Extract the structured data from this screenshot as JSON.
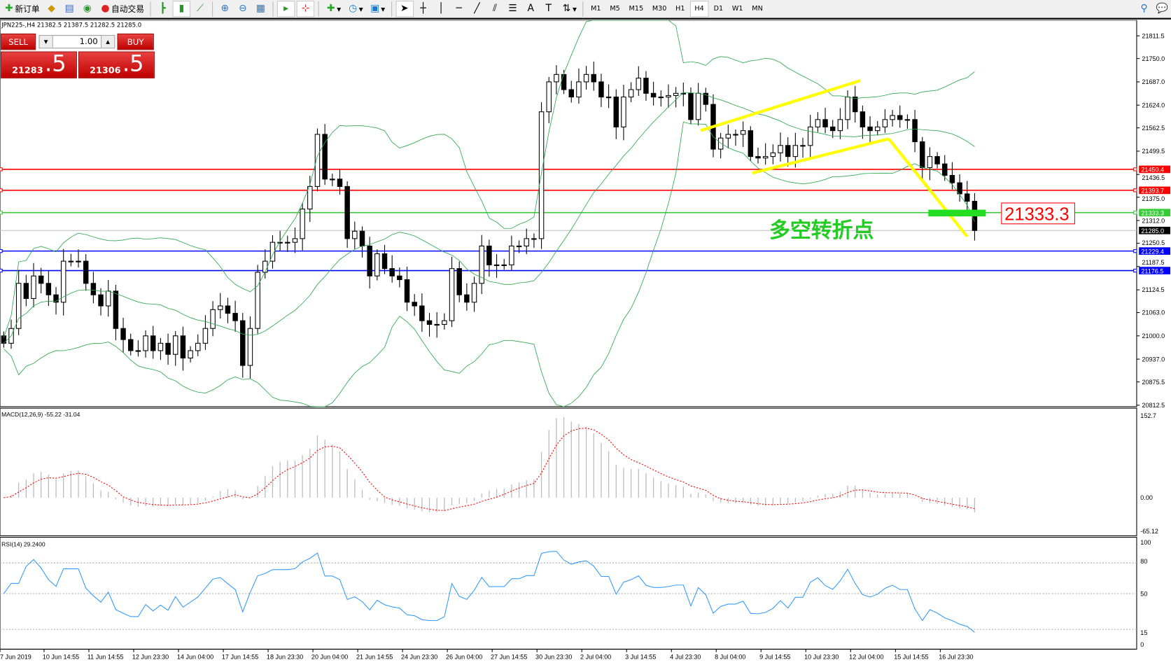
{
  "toolbar": {
    "new_order": "新订单",
    "auto_trading": "自动交易",
    "timeframes": [
      "M1",
      "M5",
      "M15",
      "M30",
      "H1",
      "H4",
      "D1",
      "W1",
      "MN"
    ],
    "active_timeframe": "H4"
  },
  "chart_info": "JPN225-,H4  21382.5 21387.5 21282.5 21285.0",
  "trade_panel": {
    "sell_label": "SELL",
    "buy_label": "BUY",
    "lot": "1.00",
    "bid_main": "21283",
    "bid_last": ".5",
    "ask_main": "21306",
    "ask_last": ".5"
  },
  "annotation": {
    "text": "多空转折点",
    "price_label": "21333.3"
  },
  "colors": {
    "bull_bear": "#000000",
    "bands": "#2fa84f",
    "resistance": "#ff0000",
    "pivot": "#33cc33",
    "support": "#0000ff",
    "trend": "#ffff00",
    "macd_signal": "#ff0000",
    "rsi": "#1e90ff"
  },
  "price_axis": {
    "ticks": [
      "21811.5",
      "21750.0",
      "21687.0",
      "21624.0",
      "21562.5",
      "21499.5",
      "21436.5",
      "21375.0",
      "21312.0",
      "21250.5",
      "21187.5",
      "21124.5",
      "21063.0",
      "21000.0",
      "20937.0",
      "20875.5",
      "20812.5"
    ],
    "range": [
      20812.5,
      21811.5
    ]
  },
  "levels": [
    {
      "price": "21450.4",
      "color": "#ff0000"
    },
    {
      "price": "21393.7",
      "color": "#ff0000"
    },
    {
      "price": "21333.3",
      "color": "#33cc33"
    },
    {
      "price": "21285.0",
      "color": "#000000"
    },
    {
      "price": "21229.4",
      "color": "#0000ff"
    },
    {
      "price": "21176.5",
      "color": "#0000ff"
    }
  ],
  "macd": {
    "label": "MACD(12,26,9) -55.22 -31.04",
    "ticks": [
      "152.7",
      "0.00",
      "-65.12"
    ]
  },
  "rsi": {
    "label": "RSI(14) 29.2400",
    "ticks": [
      "100",
      "80",
      "50",
      "15",
      "0"
    ]
  },
  "time_axis": [
    "7 Jun 2019",
    "10 Jun 14:55",
    "11 Jun 14:55",
    "12 Jun 23:30",
    "14 Jun 04:00",
    "17 Jun 14:55",
    "18 Jun 23:30",
    "20 Jun 04:00",
    "21 Jun 14:55",
    "24 Jun 23:30",
    "26 Jun 04:00",
    "27 Jun 14:55",
    "30 Jun 23:30",
    "2 Jul 04:00",
    "3 Jul 14:55",
    "4 Jul 23:30",
    "8 Jul 04:00",
    "9 Jul 14:55",
    "10 Jul 23:30",
    "12 Jul 04:00",
    "15 Jul 14:55",
    "16 Jul 23:30"
  ],
  "chart_data": {
    "type": "candlestick",
    "symbol": "JPN225-",
    "timeframe": "H4",
    "closes_approx": [
      20980,
      21020,
      21142,
      21101,
      21162,
      21142,
      21111,
      21091,
      21202,
      21202,
      21202,
      21142,
      21111,
      21081,
      21121,
      21020,
      20990,
      20960,
      20960,
      21000,
      20960,
      20980,
      20950,
      21000,
      20940,
      20960,
      20980,
      21020,
      21071,
      21081,
      21061,
      21041,
      20920,
      21020,
      21172,
      21202,
      21253,
      21253,
      21253,
      21263,
      21343,
      21404,
      21545,
      21424,
      21424,
      21404,
      21263,
      21283,
      21243,
      21162,
      21222,
      21182,
      21162,
      21152,
      21091,
      21081,
      21041,
      21031,
      21031,
      21041,
      21182,
      21111,
      21091,
      21142,
      21243,
      21192,
      21192,
      21192,
      21243,
      21243,
      21263,
      21263,
      21606,
      21687,
      21707,
      21666,
      21646,
      21687,
      21707,
      21687,
      21646,
      21646,
      21565,
      21646,
      21666,
      21697,
      21656,
      21646,
      21646,
      21650,
      21656,
      21656,
      21585,
      21656,
      21626,
      21505,
      21535,
      21545,
      21545,
      21555,
      21485,
      21481,
      21485,
      21495,
      21515,
      21485,
      21515,
      21515,
      21565,
      21585,
      21565,
      21555,
      21585,
      21646,
      21606,
      21565,
      21555,
      21565,
      21585,
      21596,
      21585,
      21585,
      21525,
      21455,
      21485,
      21465,
      21434,
      21414,
      21384,
      21364,
      21285
    ]
  }
}
